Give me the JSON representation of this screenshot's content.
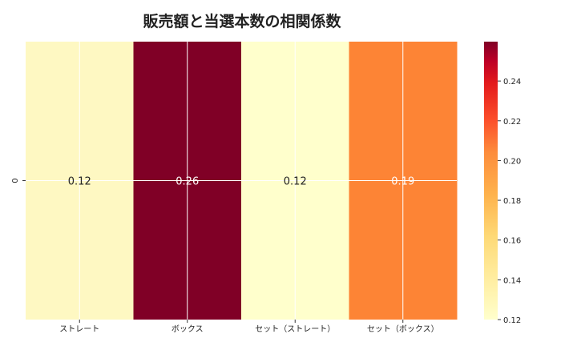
{
  "chart_data": {
    "type": "heatmap",
    "title": "販売額と当選本数の相関係数",
    "x_categories": [
      "ストレート",
      "ボックス",
      "セット（ストレート）",
      "セット（ボックス）"
    ],
    "y_categories": [
      "0"
    ],
    "values": [
      [
        0.123,
        0.259,
        0.12,
        0.19
      ]
    ],
    "labels": [
      "0.12",
      "0.26",
      "0.12",
      "0.19"
    ],
    "colormap": "YlOrRd",
    "cell_colors": [
      "#fef8c2",
      "#800026",
      "#ffffcc",
      "#fd8435"
    ],
    "label_colors": [
      "#222222",
      "#ffffff",
      "#222222",
      "#ffffff"
    ],
    "colorbar": {
      "range": [
        0.12,
        0.2598
      ],
      "ticks": [
        "0.12",
        "0.14",
        "0.16",
        "0.18",
        "0.20",
        "0.22",
        "0.24"
      ],
      "tick_values": [
        0.12,
        0.14,
        0.16,
        0.18,
        0.2,
        0.22,
        0.24
      ]
    }
  }
}
